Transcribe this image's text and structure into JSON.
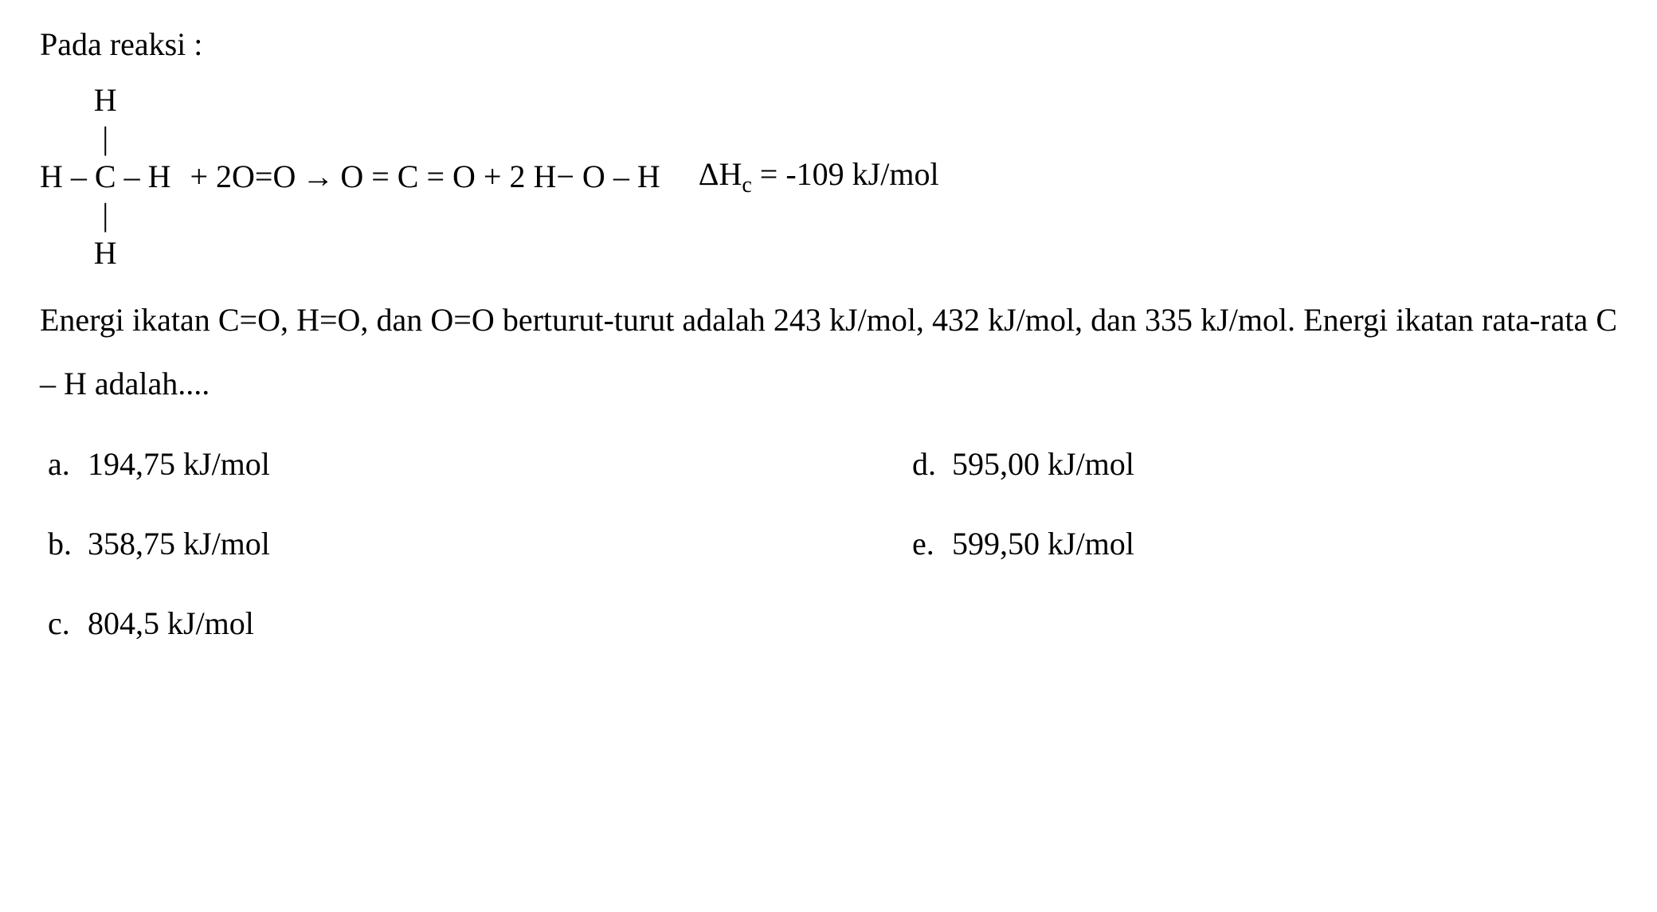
{
  "question": {
    "intro": "Pada reaksi :",
    "equation": {
      "methane": {
        "top": "H",
        "bond_top": "|",
        "middle_left": "H",
        "center": "C",
        "middle_right": "H",
        "bond_bottom": "|",
        "bottom": "H"
      },
      "plus1": "+ 2O=O",
      "arrow": "→",
      "products": "O = C = O + 2 H− O – H",
      "delta_h_label": "ΔH",
      "delta_h_sub": "c",
      "delta_h_value": "= -109 kJ/mol"
    },
    "body_text": "Energi ikatan C=O, H=O, dan O=O berturut-turut adalah 243 kJ/mol, 432 kJ/mol, dan 335 kJ/mol. Energi ikatan rata-rata C – H adalah....",
    "options": [
      {
        "letter": "a.",
        "text": "194,75 kJ/mol"
      },
      {
        "letter": "b.",
        "text": "358,75 kJ/mol"
      },
      {
        "letter": "c.",
        "text": "804,5 kJ/mol"
      },
      {
        "letter": "d.",
        "text": "595,00 kJ/mol"
      },
      {
        "letter": "e.",
        "text": "599,50 kJ/mol"
      }
    ]
  },
  "styling": {
    "font_family": "Times New Roman",
    "font_size_pt": 40,
    "text_color": "#000000",
    "background_color": "#ffffff",
    "subscript_size_pt": 28,
    "line_height": 1.8
  }
}
